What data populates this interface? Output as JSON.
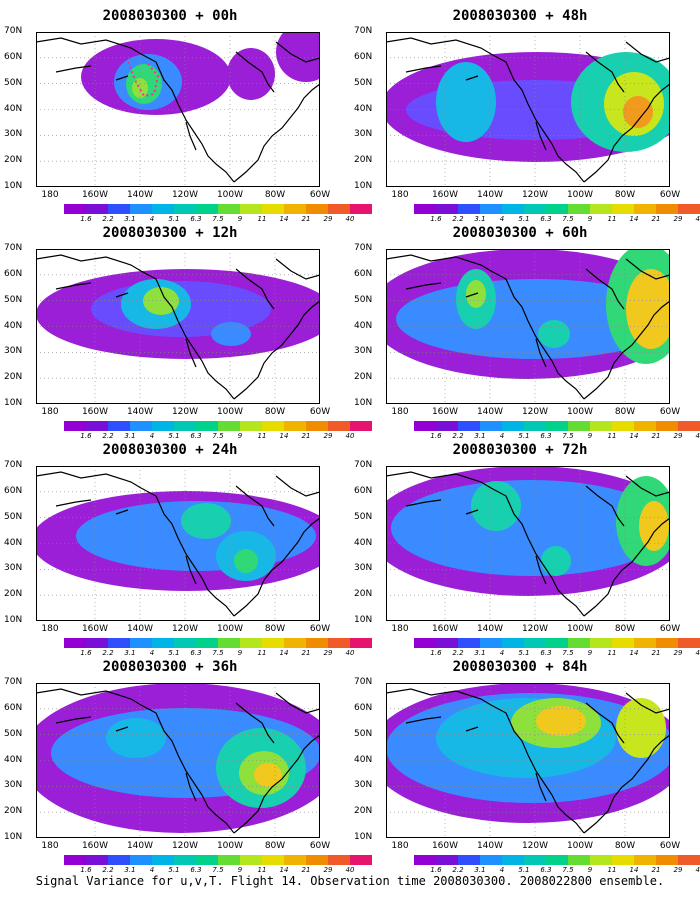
{
  "panels": [
    {
      "title": "2008030300 + 00h",
      "col": 0,
      "row": 0,
      "blobs": [
        {
          "cx": 120,
          "cy": 45,
          "rx": 75,
          "ry": 38,
          "lvl": 0
        },
        {
          "cx": 215,
          "cy": 42,
          "rx": 24,
          "ry": 26,
          "lvl": 0
        },
        {
          "cx": 270,
          "cy": 20,
          "rx": 30,
          "ry": 30,
          "lvl": 0
        },
        {
          "cx": 112,
          "cy": 50,
          "rx": 34,
          "ry": 28,
          "lvl": 2
        },
        {
          "cx": 108,
          "cy": 52,
          "rx": 18,
          "ry": 20,
          "lvl": 5
        },
        {
          "cx": 104,
          "cy": 56,
          "rx": 8,
          "ry": 10,
          "lvl": 6
        }
      ],
      "track": true
    },
    {
      "title": "2008030300 + 48h",
      "col": 1,
      "row": 0,
      "blobs": [
        {
          "cx": 150,
          "cy": 75,
          "rx": 155,
          "ry": 55,
          "lvl": 0
        },
        {
          "cx": 150,
          "cy": 78,
          "rx": 130,
          "ry": 30,
          "lvl": 1
        },
        {
          "cx": 80,
          "cy": 70,
          "rx": 30,
          "ry": 40,
          "lvl": 3
        },
        {
          "cx": 240,
          "cy": 70,
          "rx": 55,
          "ry": 50,
          "lvl": 4
        },
        {
          "cx": 248,
          "cy": 72,
          "rx": 30,
          "ry": 32,
          "lvl": 7
        },
        {
          "cx": 252,
          "cy": 80,
          "rx": 15,
          "ry": 16,
          "lvl": 9
        }
      ]
    },
    {
      "title": "2008030300 + 12h",
      "col": 0,
      "row": 1,
      "blobs": [
        {
          "cx": 150,
          "cy": 65,
          "rx": 150,
          "ry": 45,
          "lvl": 0
        },
        {
          "cx": 145,
          "cy": 60,
          "rx": 90,
          "ry": 28,
          "lvl": 1
        },
        {
          "cx": 120,
          "cy": 55,
          "rx": 35,
          "ry": 25,
          "lvl": 3
        },
        {
          "cx": 125,
          "cy": 52,
          "rx": 18,
          "ry": 14,
          "lvl": 6
        },
        {
          "cx": 195,
          "cy": 85,
          "rx": 20,
          "ry": 12,
          "lvl": 2
        }
      ]
    },
    {
      "title": "2008030300 + 60h",
      "col": 1,
      "row": 1,
      "blobs": [
        {
          "cx": 142,
          "cy": 65,
          "rx": 160,
          "ry": 65,
          "lvl": 0
        },
        {
          "cx": 150,
          "cy": 70,
          "rx": 140,
          "ry": 40,
          "lvl": 2
        },
        {
          "cx": 90,
          "cy": 50,
          "rx": 20,
          "ry": 30,
          "lvl": 4
        },
        {
          "cx": 90,
          "cy": 45,
          "rx": 10,
          "ry": 14,
          "lvl": 6
        },
        {
          "cx": 260,
          "cy": 55,
          "rx": 40,
          "ry": 60,
          "lvl": 5
        },
        {
          "cx": 265,
          "cy": 60,
          "rx": 25,
          "ry": 40,
          "lvl": 8
        },
        {
          "cx": 168,
          "cy": 85,
          "rx": 16,
          "ry": 14,
          "lvl": 4
        }
      ]
    },
    {
      "title": "2008030300 + 24h",
      "col": 0,
      "row": 2,
      "blobs": [
        {
          "cx": 150,
          "cy": 75,
          "rx": 155,
          "ry": 50,
          "lvl": 0
        },
        {
          "cx": 160,
          "cy": 70,
          "rx": 120,
          "ry": 35,
          "lvl": 2
        },
        {
          "cx": 170,
          "cy": 55,
          "rx": 25,
          "ry": 18,
          "lvl": 4
        },
        {
          "cx": 210,
          "cy": 90,
          "rx": 30,
          "ry": 25,
          "lvl": 3
        },
        {
          "cx": 210,
          "cy": 95,
          "rx": 12,
          "ry": 12,
          "lvl": 5
        }
      ]
    },
    {
      "title": "2008030300 + 72h",
      "col": 1,
      "row": 2,
      "blobs": [
        {
          "cx": 142,
          "cy": 65,
          "rx": 160,
          "ry": 65,
          "lvl": 0
        },
        {
          "cx": 145,
          "cy": 62,
          "rx": 140,
          "ry": 48,
          "lvl": 2
        },
        {
          "cx": 110,
          "cy": 40,
          "rx": 25,
          "ry": 25,
          "lvl": 4
        },
        {
          "cx": 170,
          "cy": 95,
          "rx": 15,
          "ry": 15,
          "lvl": 4
        },
        {
          "cx": 260,
          "cy": 55,
          "rx": 30,
          "ry": 45,
          "lvl": 5
        },
        {
          "cx": 268,
          "cy": 60,
          "rx": 15,
          "ry": 25,
          "lvl": 8
        }
      ]
    },
    {
      "title": "2008030300 + 36h",
      "col": 0,
      "row": 3,
      "blobs": [
        {
          "cx": 145,
          "cy": 75,
          "rx": 160,
          "ry": 75,
          "lvl": 0
        },
        {
          "cx": 150,
          "cy": 70,
          "rx": 135,
          "ry": 45,
          "lvl": 2
        },
        {
          "cx": 100,
          "cy": 55,
          "rx": 30,
          "ry": 20,
          "lvl": 3
        },
        {
          "cx": 225,
          "cy": 85,
          "rx": 45,
          "ry": 40,
          "lvl": 4
        },
        {
          "cx": 228,
          "cy": 90,
          "rx": 25,
          "ry": 22,
          "lvl": 6
        },
        {
          "cx": 232,
          "cy": 92,
          "rx": 14,
          "ry": 12,
          "lvl": 8
        }
      ]
    },
    {
      "title": "2008030300 + 84h",
      "col": 1,
      "row": 3,
      "blobs": [
        {
          "cx": 142,
          "cy": 70,
          "rx": 160,
          "ry": 70,
          "lvl": 0
        },
        {
          "cx": 145,
          "cy": 65,
          "rx": 145,
          "ry": 55,
          "lvl": 2
        },
        {
          "cx": 140,
          "cy": 55,
          "rx": 90,
          "ry": 40,
          "lvl": 3
        },
        {
          "cx": 170,
          "cy": 40,
          "rx": 45,
          "ry": 25,
          "lvl": 6
        },
        {
          "cx": 175,
          "cy": 38,
          "rx": 25,
          "ry": 15,
          "lvl": 8
        },
        {
          "cx": 255,
          "cy": 45,
          "rx": 25,
          "ry": 30,
          "lvl": 7
        }
      ]
    }
  ],
  "lat_labels": [
    "70N",
    "60N",
    "50N",
    "40N",
    "30N",
    "20N",
    "10N"
  ],
  "lon_labels": [
    "180",
    "160W",
    "140W",
    "120W",
    "100W",
    "80W",
    "60W"
  ],
  "colorbar": {
    "colors": [
      "#9400d3",
      "#7a0fd8",
      "#2f4fff",
      "#1e90ff",
      "#00b4e6",
      "#00c8b4",
      "#00d28c",
      "#64dc32",
      "#b4e61e",
      "#e6dc00",
      "#f0b400",
      "#f08c00",
      "#f05a28",
      "#e6146e"
    ],
    "labels": [
      "1.6",
      "2.2",
      "3.1",
      "4",
      "5.1",
      "6.3",
      "7.5",
      "9",
      "11",
      "14",
      "21",
      "29",
      "40"
    ]
  },
  "caption": "Signal Variance for u,v,T. Flight 14. Observation time 2008030300. 2008022800 ensemble.",
  "palette": [
    "#9b1fd6",
    "#6a4cff",
    "#3a8bff",
    "#18b8e6",
    "#18d0b0",
    "#30d878",
    "#8ee03c",
    "#c8e61e",
    "#f0c81e",
    "#f09a1e"
  ]
}
